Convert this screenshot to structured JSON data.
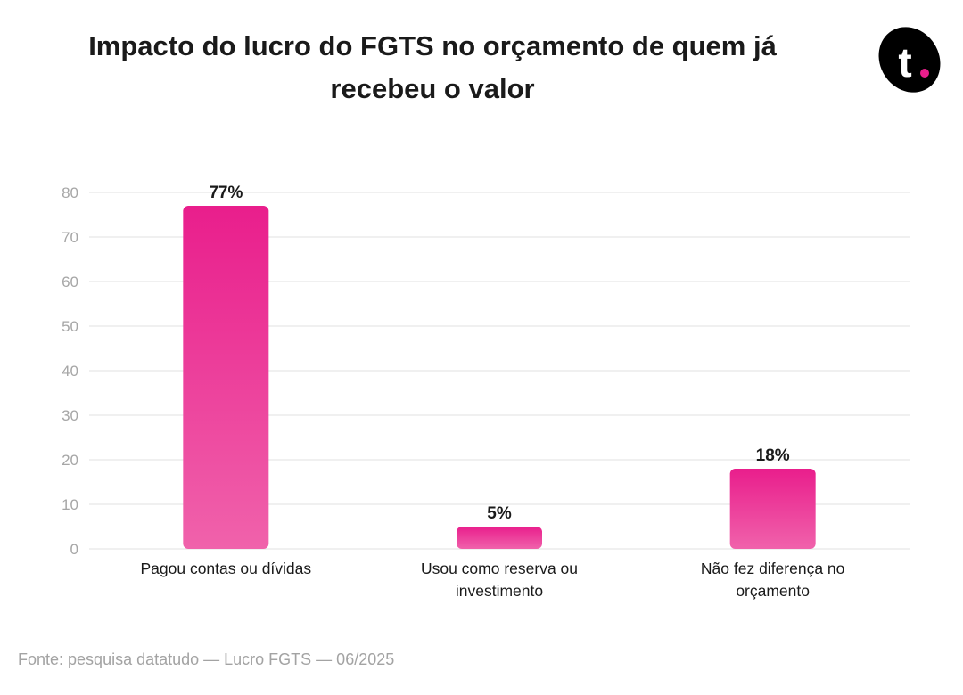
{
  "title": "Impacto do lucro do FGTS no orçamento de quem já recebeu o valor",
  "logo": {
    "text": "t",
    "icon": "brand-logo-icon",
    "color": "#000000",
    "dot_color": "#e91e8c"
  },
  "source": "Fonte: pesquisa datatudo — Lucro FGTS — 06/2025",
  "colors": {
    "bar_top": "#e91e8c",
    "bar_bottom": "#f062ab",
    "grid": "#ebebeb",
    "axis_text": "#a6a6a6"
  },
  "chart_data": {
    "type": "bar",
    "title": "Impacto do lucro do FGTS no orçamento de quem já recebeu o valor",
    "categories": [
      [
        "Pagou contas ou dívidas"
      ],
      [
        "Usou como reserva ou",
        "investimento"
      ],
      [
        "Não fez diferença no",
        "orçamento"
      ]
    ],
    "values": [
      77,
      5,
      18
    ],
    "data_labels": [
      "77%",
      "5%",
      "18%"
    ],
    "xlabel": "",
    "ylabel": "",
    "ylim": [
      0,
      80
    ],
    "yticks": [
      0,
      10,
      20,
      30,
      40,
      50,
      60,
      70,
      80
    ],
    "grid": true,
    "legend": "none"
  }
}
